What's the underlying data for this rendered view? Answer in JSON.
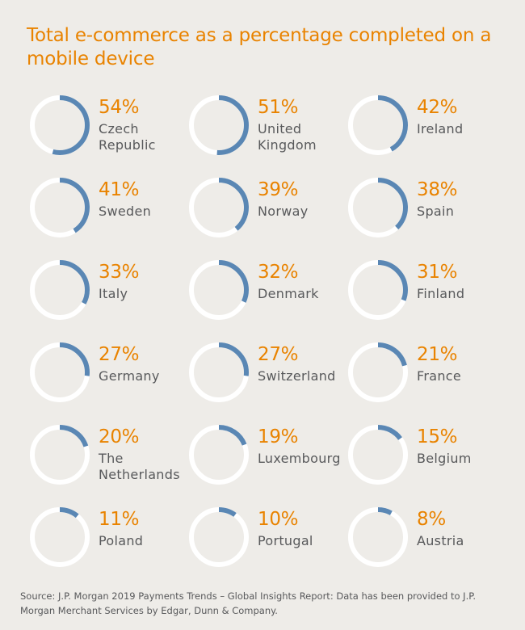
{
  "title": "Total e-commerce as a percentage completed on a mobile device",
  "source": "Source: J.P. Morgan 2019 Payments Trends – Global Insights Report: Data has been provided to J.P. Morgan Merchant Services by Edgar, Dunn & Company.",
  "colors": {
    "accent": "#e98300",
    "arc": "#5a87b4",
    "track": "#ffffff",
    "text": "#58595b",
    "background": "#eeece8"
  },
  "chart_data": {
    "type": "donut-grid",
    "title": "Total e-commerce as a percentage completed on a mobile device",
    "unit": "%",
    "items": [
      {
        "label": "Czech\nRepublic",
        "value": 54,
        "display": "54%"
      },
      {
        "label": "United\nKingdom",
        "value": 51,
        "display": "51%"
      },
      {
        "label": "Ireland",
        "value": 42,
        "display": "42%"
      },
      {
        "label": "Sweden",
        "value": 41,
        "display": "41%"
      },
      {
        "label": "Norway",
        "value": 39,
        "display": "39%"
      },
      {
        "label": "Spain",
        "value": 38,
        "display": "38%"
      },
      {
        "label": "Italy",
        "value": 33,
        "display": "33%"
      },
      {
        "label": "Denmark",
        "value": 32,
        "display": "32%"
      },
      {
        "label": "Finland",
        "value": 31,
        "display": "31%"
      },
      {
        "label": "Germany",
        "value": 27,
        "display": "27%"
      },
      {
        "label": "Switzerland",
        "value": 27,
        "display": "27%"
      },
      {
        "label": "France",
        "value": 21,
        "display": "21%"
      },
      {
        "label": "The\nNetherlands",
        "value": 20,
        "display": "20%"
      },
      {
        "label": "Luxembourg",
        "value": 19,
        "display": "19%"
      },
      {
        "label": "Belgium",
        "value": 15,
        "display": "15%"
      },
      {
        "label": "Poland",
        "value": 11,
        "display": "11%"
      },
      {
        "label": "Portugal",
        "value": 10,
        "display": "10%"
      },
      {
        "label": "Austria",
        "value": 8,
        "display": "8%"
      }
    ]
  }
}
